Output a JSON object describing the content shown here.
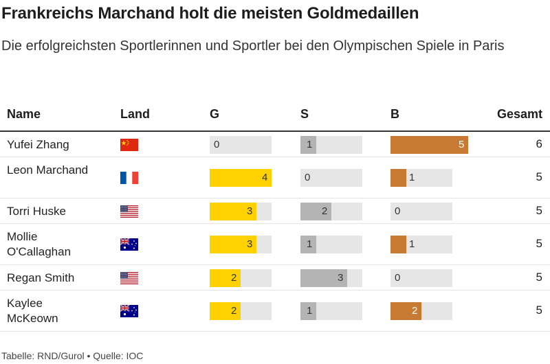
{
  "header": {
    "title": "Frankreichs Marchand holt die meisten Goldmedaillen",
    "subtitle": "Die erfolgreichsten Sportlerinnen und Sportler bei den Olympischen Spiele in Paris"
  },
  "columns": {
    "name": "Name",
    "country": "Land",
    "gold": "G",
    "silver": "S",
    "bronze": "B",
    "total": "Gesamt"
  },
  "colors": {
    "gold": "#ffd100",
    "silver": "#b4b4b4",
    "bronze": "#c77a32",
    "track": "#e6e6e6"
  },
  "footer": {
    "text": "Tabelle: RND/Gurol • Quelle: IOC"
  },
  "chart_data": {
    "type": "table",
    "max_medals": 4,
    "rows": [
      {
        "name": "Yufei Zhang",
        "flag": "china-flag-icon",
        "gold": 0,
        "silver": 1,
        "bronze": 5,
        "total": 6
      },
      {
        "name": "Leon Marchand",
        "flag": "france-flag-icon",
        "gold": 4,
        "silver": 0,
        "bronze": 1,
        "total": 5
      },
      {
        "name": "Torri Huske",
        "flag": "usa-flag-icon",
        "gold": 3,
        "silver": 2,
        "bronze": 0,
        "total": 5
      },
      {
        "name": "Mollie O'Callaghan",
        "flag": "australia-flag-icon",
        "gold": 3,
        "silver": 1,
        "bronze": 1,
        "total": 5
      },
      {
        "name": "Regan Smith",
        "flag": "usa-flag-icon",
        "gold": 2,
        "silver": 3,
        "bronze": 0,
        "total": 5
      },
      {
        "name": "Kaylee McKeown",
        "flag": "australia-flag-icon",
        "gold": 2,
        "silver": 1,
        "bronze": 2,
        "total": 5
      }
    ]
  }
}
